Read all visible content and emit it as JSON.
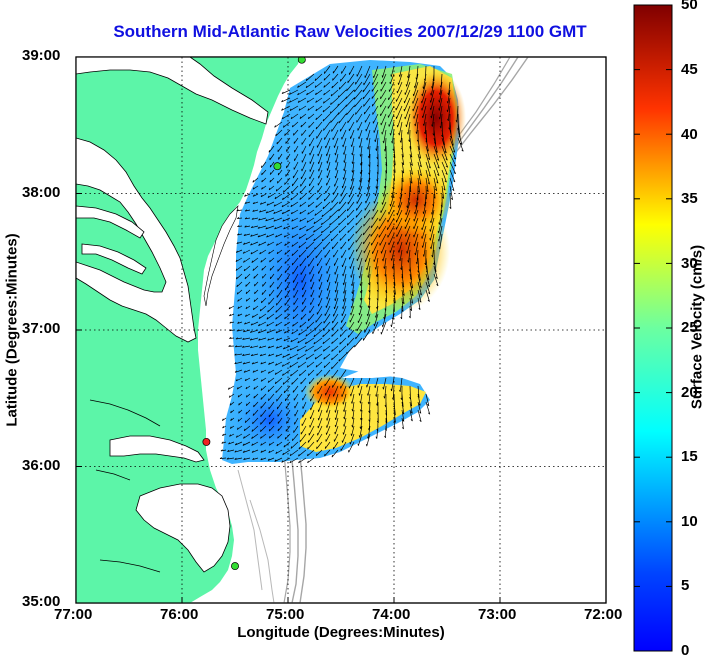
{
  "title": "Southern Mid-Atlantic Raw Velocities 2007/12/29 1100 GMT",
  "axes": {
    "xlabel": "Longitude (Degrees:Minutes)",
    "ylabel": "Latitude (Degrees:Minutes)",
    "xticks": [
      "77:00",
      "76:00",
      "75:00",
      "74:00",
      "73:00",
      "72:00"
    ],
    "yticks": [
      "39:00",
      "38:00",
      "37:00",
      "36:00",
      "35:00"
    ],
    "xlim": [
      -77,
      -72
    ],
    "ylim": [
      35,
      39
    ],
    "grid": "dotted"
  },
  "colorbar": {
    "label": "Surface Velocity (cm/s)",
    "ticks": [
      "50",
      "45",
      "40",
      "35",
      "30",
      "25",
      "20",
      "15",
      "10",
      "5",
      "0"
    ],
    "range": [
      0,
      50
    ],
    "colormap": "jet"
  },
  "colors": {
    "land": "#5cf5a8",
    "coast": "#000000",
    "ocean": "#ffffff",
    "bathymetry": "#a6a6a6",
    "title": "#1010e0"
  },
  "stations": [
    {
      "name": "station-north",
      "lon": -74.87,
      "lat": 38.98,
      "color": "#33dd33"
    },
    {
      "name": "station-mid",
      "lon": -75.1,
      "lat": 38.2,
      "color": "#33dd33"
    },
    {
      "name": "station-red",
      "lon": -75.77,
      "lat": 36.18,
      "color": "#ee2222"
    },
    {
      "name": "station-south",
      "lon": -75.5,
      "lat": 35.27,
      "color": "#33dd33"
    }
  ]
}
